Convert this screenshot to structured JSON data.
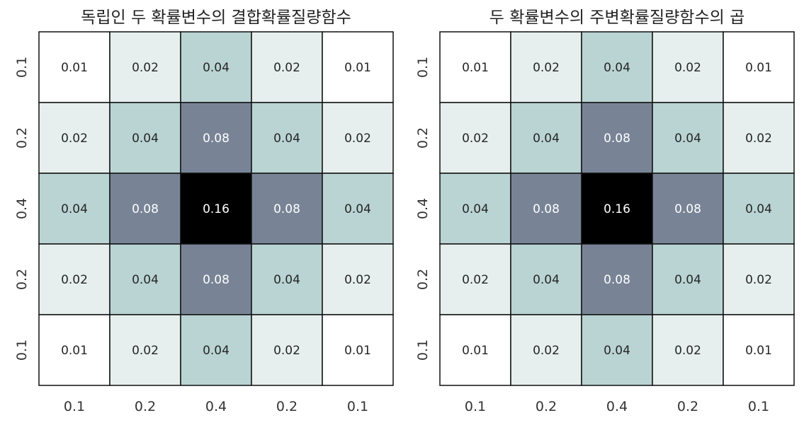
{
  "chart_data": [
    {
      "type": "heatmap",
      "title": "독립인 두 확률변수의 결합확률질량함수",
      "xlabel": "",
      "ylabel": "",
      "x_tick_labels": [
        "0.1",
        "0.2",
        "0.4",
        "0.2",
        "0.1"
      ],
      "y_tick_labels": [
        "0.1",
        "0.2",
        "0.4",
        "0.2",
        "0.1"
      ],
      "values": [
        [
          "0.01",
          "0.02",
          "0.04",
          "0.02",
          "0.01"
        ],
        [
          "0.02",
          "0.04",
          "0.08",
          "0.04",
          "0.02"
        ],
        [
          "0.04",
          "0.08",
          "0.16",
          "0.08",
          "0.04"
        ],
        [
          "0.02",
          "0.04",
          "0.08",
          "0.04",
          "0.02"
        ],
        [
          "0.01",
          "0.02",
          "0.04",
          "0.02",
          "0.01"
        ]
      ],
      "colormap": "bone_r",
      "value_range": [
        0.01,
        0.16
      ],
      "grid": true
    },
    {
      "type": "heatmap",
      "title": "두 확률변수의 주변확률질량함수의 곱",
      "xlabel": "",
      "ylabel": "",
      "x_tick_labels": [
        "0.1",
        "0.2",
        "0.4",
        "0.2",
        "0.1"
      ],
      "y_tick_labels": [
        "0.1",
        "0.2",
        "0.4",
        "0.2",
        "0.1"
      ],
      "values": [
        [
          "0.01",
          "0.02",
          "0.04",
          "0.02",
          "0.01"
        ],
        [
          "0.02",
          "0.04",
          "0.08",
          "0.04",
          "0.02"
        ],
        [
          "0.04",
          "0.08",
          "0.16",
          "0.08",
          "0.04"
        ],
        [
          "0.02",
          "0.04",
          "0.08",
          "0.04",
          "0.02"
        ],
        [
          "0.01",
          "0.02",
          "0.04",
          "0.02",
          "0.01"
        ]
      ],
      "colormap": "bone_r",
      "value_range": [
        0.01,
        0.16
      ],
      "grid": true
    }
  ],
  "colors": {
    "0.01": "#ffffff",
    "0.02": "#e6efed",
    "0.04": "#b9d4d3",
    "0.08": "#788496",
    "0.16": "#000000",
    "gridline": "#111111",
    "dark_text": "#262626",
    "light_text": "#ffffff"
  }
}
